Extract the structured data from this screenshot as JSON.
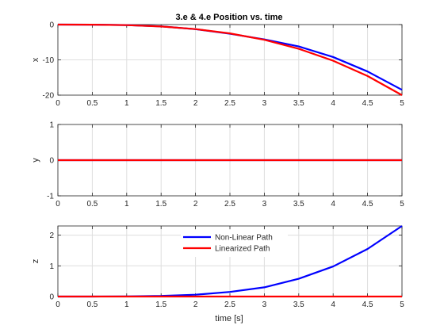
{
  "title": "3.e & 4.e Position vs. time",
  "xlabel": "time [s]",
  "colors": {
    "nonlinear": "#0000ff",
    "linearized": "#ff0000",
    "grid": "#dedede",
    "axis": "#262626"
  },
  "chart_data": [
    {
      "type": "line",
      "title": "3.e & 4.e Position vs. time",
      "xlabel": "",
      "ylabel": "x",
      "xlim": [
        0,
        5
      ],
      "ylim": [
        -20,
        0
      ],
      "xticks": [
        0,
        0.5,
        1,
        1.5,
        2,
        2.5,
        3,
        3.5,
        4,
        4.5,
        5
      ],
      "xtick_labels": [
        "0",
        "0.5",
        "1",
        "1.5",
        "2",
        "2.5",
        "3",
        "3.5",
        "4",
        "4.5",
        "5"
      ],
      "yticks": [
        -20,
        -10,
        0
      ],
      "ytick_labels": [
        "-20",
        "-10",
        "0"
      ],
      "grid": true,
      "series": [
        {
          "name": "Non-Linear Path",
          "color": "#0000ff",
          "x": [
            0,
            0.5,
            1,
            1.5,
            2,
            2.5,
            3,
            3.5,
            4,
            4.5,
            5
          ],
          "values": [
            0,
            -0.02,
            -0.14,
            -0.5,
            -1.3,
            -2.6,
            -4.2,
            -6.2,
            -9.2,
            -13.3,
            -18.5
          ]
        },
        {
          "name": "Linearized Path",
          "color": "#ff0000",
          "x": [
            0,
            0.5,
            1,
            1.5,
            2,
            2.5,
            3,
            3.5,
            4,
            4.5,
            5
          ],
          "values": [
            0,
            -0.02,
            -0.16,
            -0.54,
            -1.28,
            -2.5,
            -4.32,
            -6.86,
            -10.24,
            -14.58,
            -20.0
          ]
        }
      ]
    },
    {
      "type": "line",
      "title": "",
      "xlabel": "",
      "ylabel": "y",
      "xlim": [
        0,
        5
      ],
      "ylim": [
        -1,
        1
      ],
      "xticks": [
        0,
        0.5,
        1,
        1.5,
        2,
        2.5,
        3,
        3.5,
        4,
        4.5,
        5
      ],
      "xtick_labels": [
        "0",
        "0.5",
        "1",
        "1.5",
        "2",
        "2.5",
        "3",
        "3.5",
        "4",
        "4.5",
        "5"
      ],
      "yticks": [
        -1,
        0,
        1
      ],
      "ytick_labels": [
        "-1",
        "0",
        "1"
      ],
      "grid": true,
      "series": [
        {
          "name": "Non-Linear Path",
          "color": "#0000ff",
          "x": [
            0,
            5
          ],
          "values": [
            0,
            0
          ]
        },
        {
          "name": "Linearized Path",
          "color": "#ff0000",
          "x": [
            0,
            5
          ],
          "values": [
            0,
            0
          ]
        }
      ]
    },
    {
      "type": "line",
      "title": "",
      "xlabel": "time [s]",
      "ylabel": "z",
      "xlim": [
        0,
        5
      ],
      "ylim": [
        0,
        2.3
      ],
      "xticks": [
        0,
        0.5,
        1,
        1.5,
        2,
        2.5,
        3,
        3.5,
        4,
        4.5,
        5
      ],
      "xtick_labels": [
        "0",
        "0.5",
        "1",
        "1.5",
        "2",
        "2.5",
        "3",
        "3.5",
        "4",
        "4.5",
        "5"
      ],
      "yticks": [
        0,
        1,
        2
      ],
      "ytick_labels": [
        "0",
        "1",
        "2"
      ],
      "grid": true,
      "legend": {
        "placement": "top-center",
        "entries": [
          "Non-Linear Path",
          "Linearized Path"
        ]
      },
      "series": [
        {
          "name": "Non-Linear Path",
          "color": "#0000ff",
          "x": [
            0,
            0.5,
            1,
            1.5,
            2,
            2.5,
            3,
            3.5,
            4,
            4.5,
            5
          ],
          "values": [
            0,
            0.0,
            0.005,
            0.02,
            0.06,
            0.15,
            0.3,
            0.58,
            0.98,
            1.55,
            2.3
          ]
        },
        {
          "name": "Linearized Path",
          "color": "#ff0000",
          "x": [
            0,
            5
          ],
          "values": [
            0,
            0
          ]
        }
      ]
    }
  ]
}
